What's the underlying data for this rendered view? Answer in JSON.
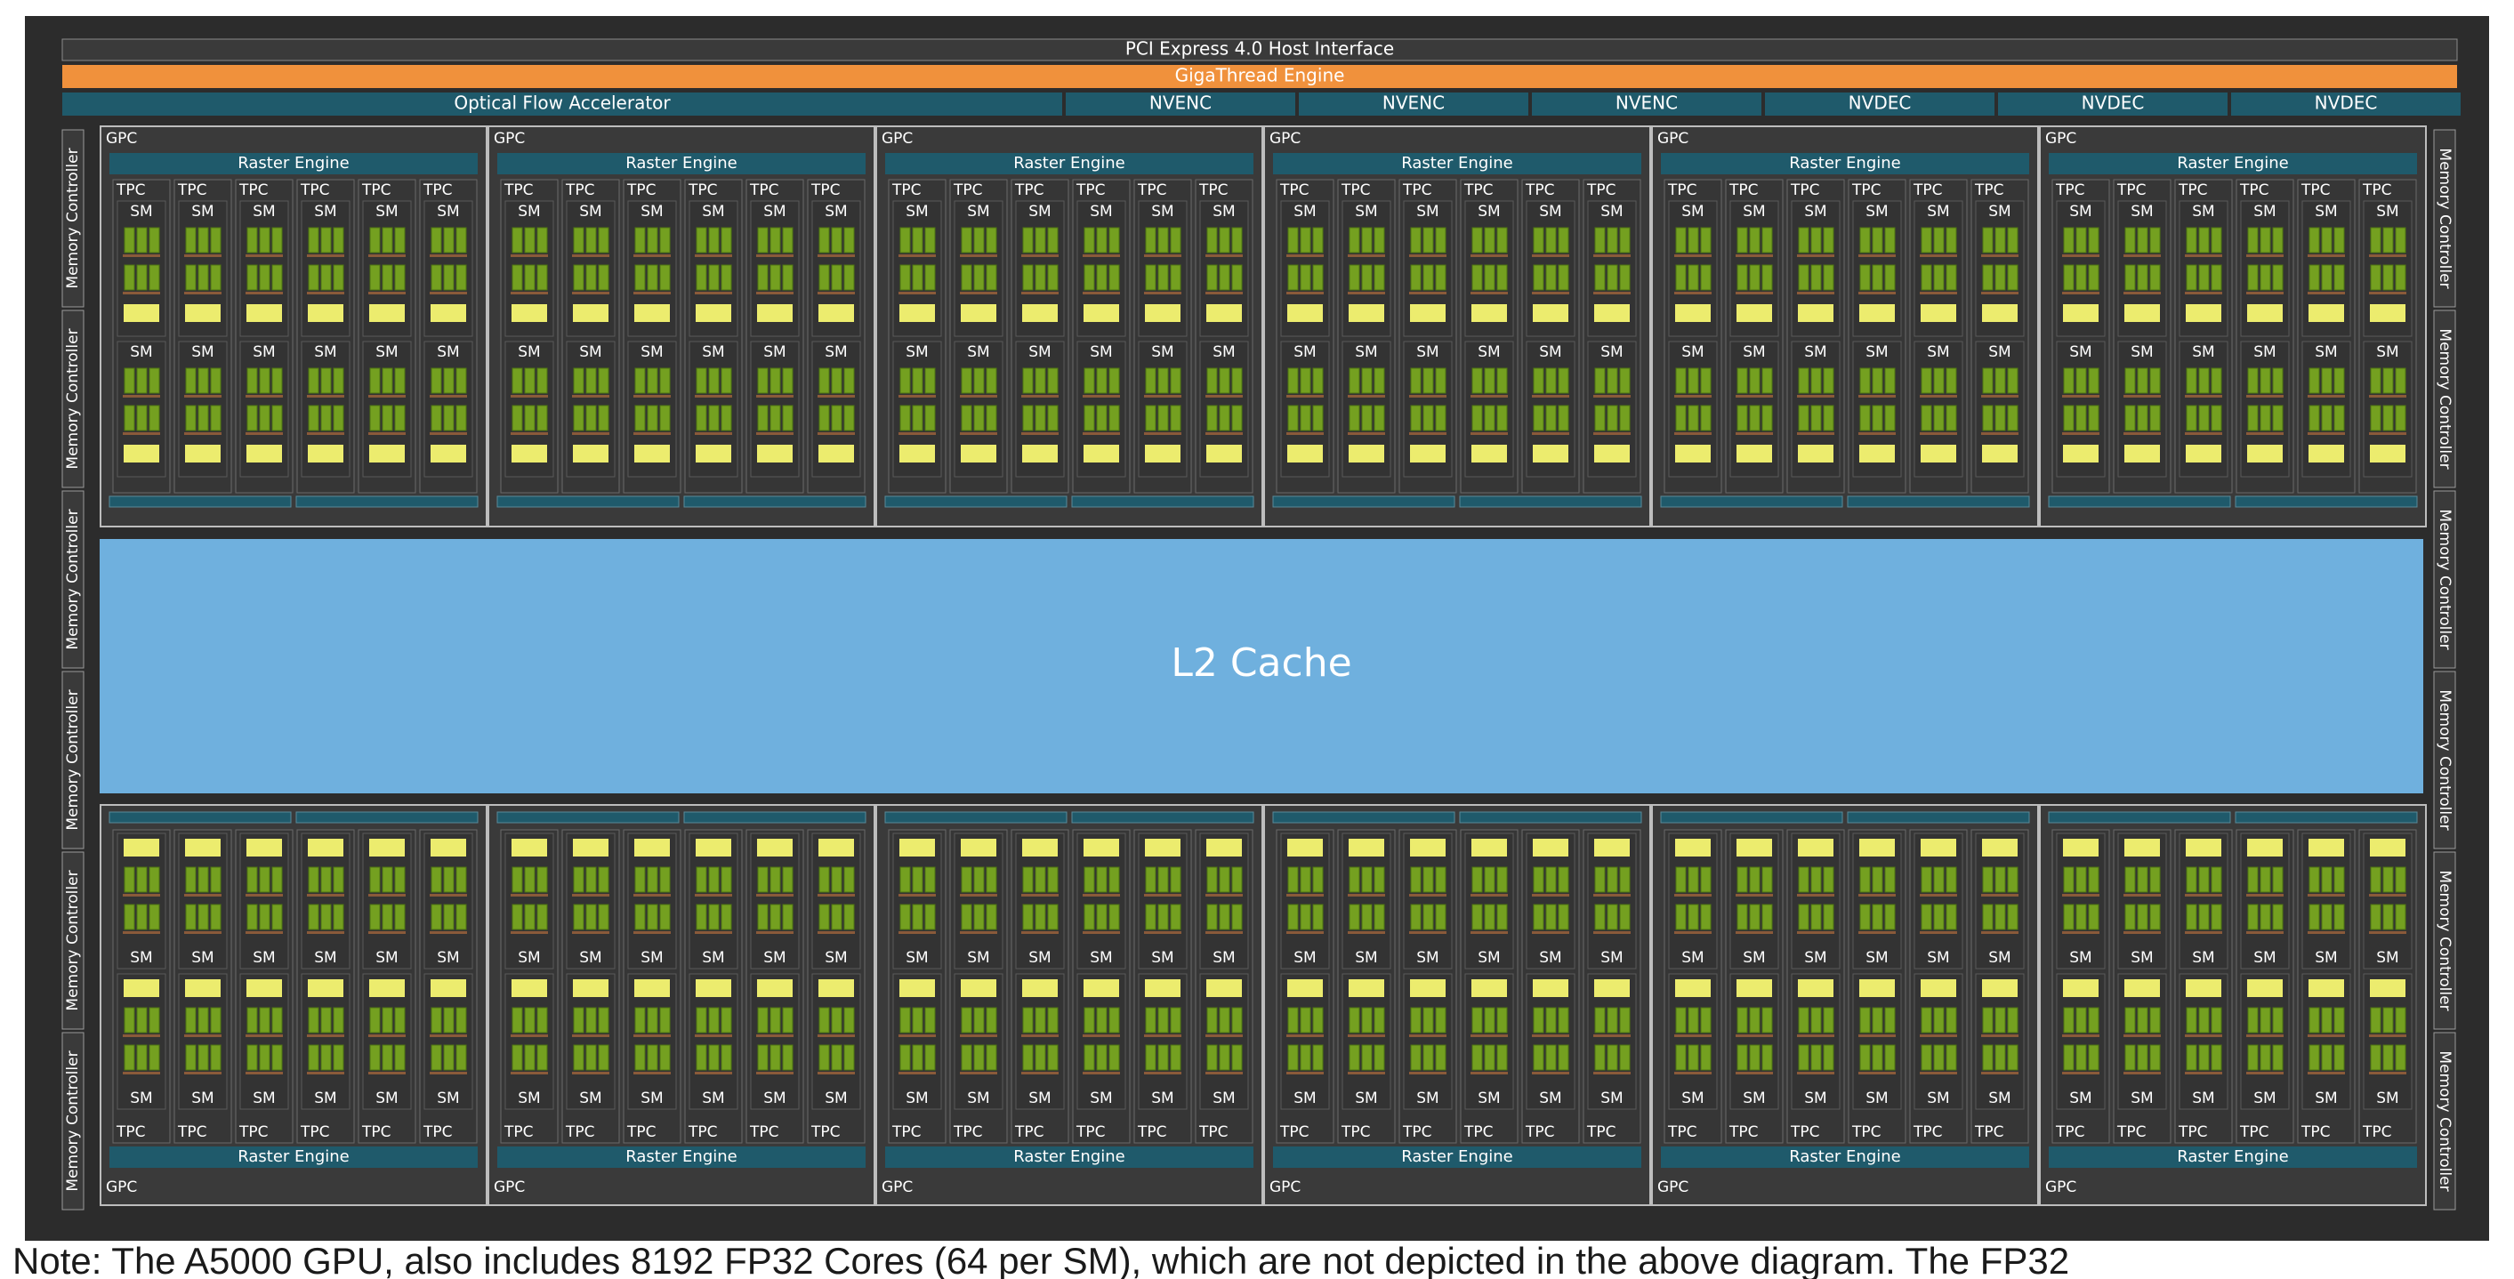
{
  "chip": {
    "host_interface": "PCI Express 4.0 Host Interface",
    "gigathread": "GigaThread Engine",
    "optical_flow": "Optical Flow Accelerator",
    "encoders": [
      "NVENC",
      "NVENC",
      "NVENC"
    ],
    "decoders": [
      "NVDEC",
      "NVDEC",
      "NVDEC"
    ],
    "memory_controller_label": "Memory Controller",
    "memory_controllers_per_side": 6,
    "l2_cache": "L2 Cache",
    "gpc_label": "GPC",
    "raster_engine_label": "Raster Engine",
    "tpc_label": "TPC",
    "sm_label": "SM",
    "gpcs_per_row": 6,
    "tpcs_per_gpc": 6,
    "sms_per_tpc": 2
  },
  "caption": "Note: The A5000 GPU, also includes 8192 FP32 Cores (64 per SM), which are not depicted in the above diagram. The FP32",
  "colors": {
    "frame": "#2c2c2c",
    "panel": "#3a3a3a",
    "teal": "#1f5a6b",
    "orange": "#f0913c",
    "l2": "#6fb0de",
    "green": "#74a020",
    "green_dark": "#4e7512",
    "yellow": "#ecec6e",
    "grey_line": "#bdbdbd"
  }
}
